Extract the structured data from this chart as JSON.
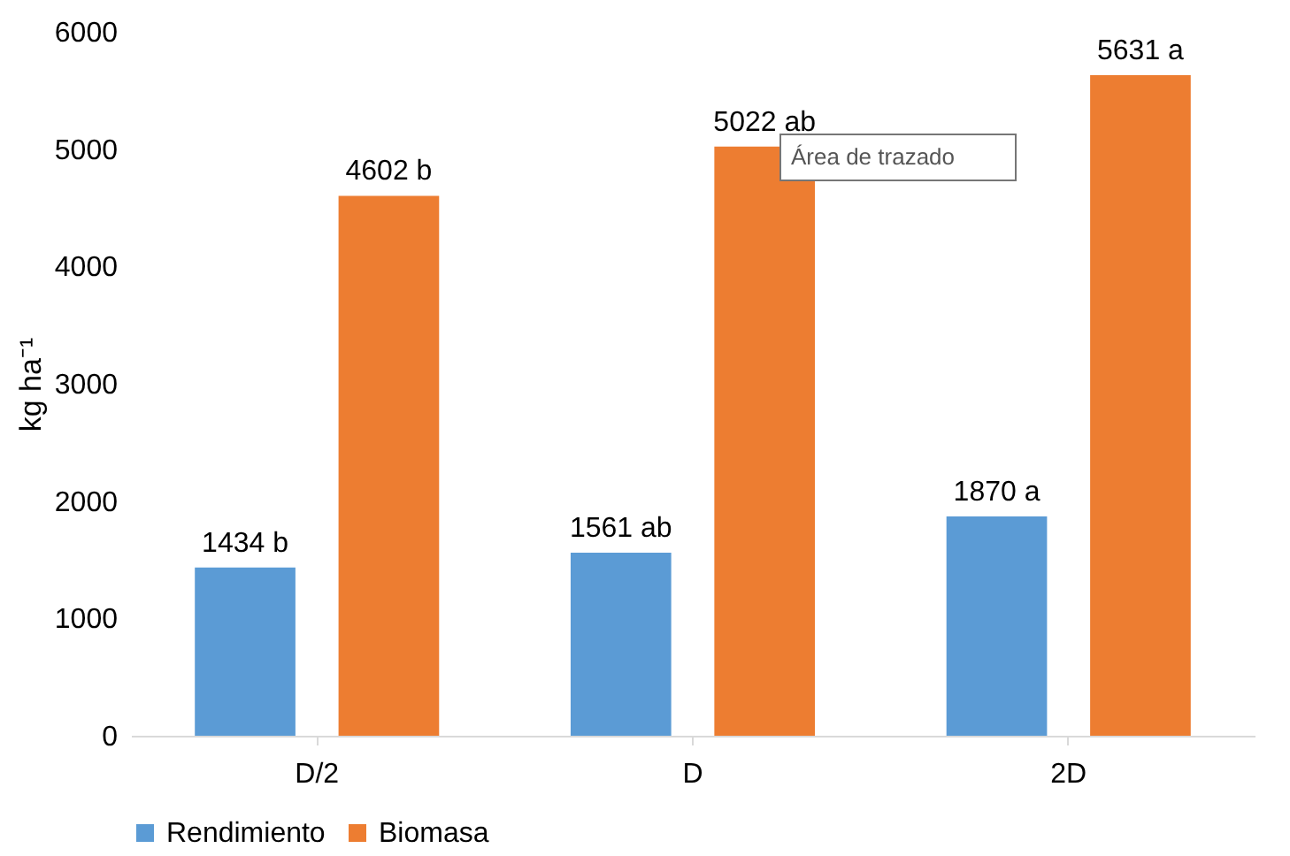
{
  "chart_data": {
    "type": "bar",
    "ylabel": "kg ha⁻¹",
    "categories": [
      "D/2",
      "D",
      "2D"
    ],
    "series": [
      {
        "name": "Rendimiento",
        "color": "#5b9bd5",
        "values": [
          1434,
          1561,
          1870
        ],
        "value_labels": [
          "1434 b",
          "1561  ab",
          "1870  a"
        ]
      },
      {
        "name": "Biomasa",
        "color": "#ed7d31",
        "values": [
          4602,
          5022,
          5631
        ],
        "value_labels": [
          "4602 b",
          "5022  ab",
          "5631 a"
        ]
      }
    ],
    "ylim": [
      0,
      6000
    ],
    "yticks": [
      0,
      1000,
      2000,
      3000,
      4000,
      5000,
      6000
    ],
    "grid": false,
    "legend": "bottom",
    "annotations": [
      "Área de trazado"
    ]
  }
}
